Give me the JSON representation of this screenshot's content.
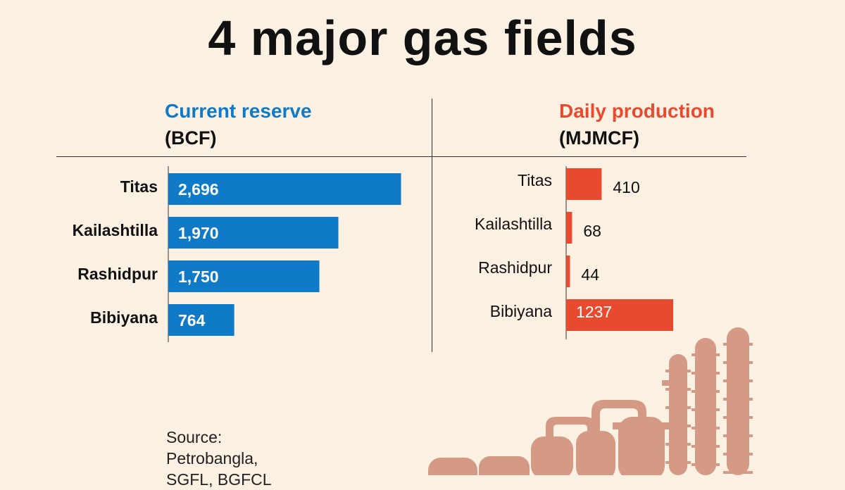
{
  "title": "4 major gas fields",
  "source": {
    "line1": "Source:",
    "line2": "Petrobangla,",
    "line3": "SGFL, BGFCL"
  },
  "colors": {
    "reserve": "#0f7ac7",
    "production": "#e84a2f",
    "plant": "#d49a86"
  },
  "chart_data": [
    {
      "type": "bar",
      "orientation": "horizontal",
      "title": "Current reserve",
      "subtitle": "(BCF)",
      "categories": [
        "Titas",
        "Kailashtilla",
        "Rashidpur",
        "Bibiyana"
      ],
      "values": [
        2696,
        1970,
        1750,
        764
      ],
      "labels": [
        "2,696",
        "1,970",
        "1,750",
        "764"
      ],
      "xlim": [
        0,
        2700
      ],
      "grid": false
    },
    {
      "type": "bar",
      "orientation": "horizontal",
      "title": "Daily production",
      "subtitle": "(MJMCF)",
      "categories": [
        "Titas",
        "Kailashtilla",
        "Rashidpur",
        "Bibiyana"
      ],
      "values": [
        410,
        68,
        44,
        1237
      ],
      "labels": [
        "410",
        "68",
        "44",
        "1237"
      ],
      "xlim": [
        0,
        1237
      ],
      "grid": false
    }
  ]
}
